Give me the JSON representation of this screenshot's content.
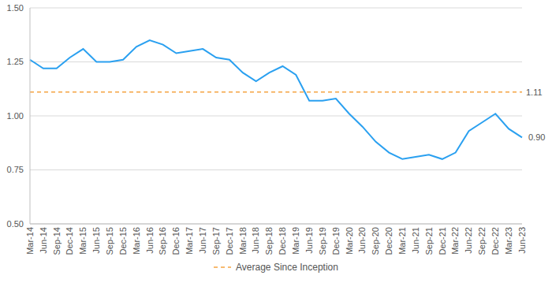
{
  "chart_data": {
    "type": "line",
    "grid": true,
    "legend": "bottom",
    "categories": [
      "Mar-14",
      "Jun-14",
      "Sep-14",
      "Dec-14",
      "Mar-15",
      "Jun-15",
      "Sep-15",
      "Dec-15",
      "Mar-16",
      "Jun-16",
      "Sep-16",
      "Dec-16",
      "Mar-17",
      "Jun-17",
      "Sep-17",
      "Dec-17",
      "Mar-18",
      "Jun-18",
      "Sep-18",
      "Dec-18",
      "Mar-19",
      "Jun-19",
      "Sep-19",
      "Dec-19",
      "Mar-20",
      "Jun-20",
      "Sep-20",
      "Dec-20",
      "Mar-21",
      "Jun-21",
      "Sep-21",
      "Dec-21",
      "Mar-22",
      "Jun-22",
      "Sep-22",
      "Dec-22",
      "Mar-23",
      "Jun-23"
    ],
    "series": [
      {
        "color": "#2aa0f0",
        "line_style": "solid",
        "values": [
          1.26,
          1.22,
          1.22,
          1.27,
          1.31,
          1.25,
          1.25,
          1.26,
          1.32,
          1.35,
          1.33,
          1.29,
          1.3,
          1.31,
          1.27,
          1.26,
          1.2,
          1.16,
          1.2,
          1.23,
          1.19,
          1.07,
          1.07,
          1.08,
          1.01,
          0.95,
          0.88,
          0.83,
          0.8,
          0.81,
          0.82,
          0.8,
          0.83,
          0.93,
          0.97,
          1.01,
          0.94,
          0.9
        ],
        "value_labels": [
          null,
          null,
          null,
          null,
          null,
          null,
          null,
          null,
          null,
          null,
          null,
          null,
          null,
          null,
          null,
          null,
          null,
          null,
          null,
          null,
          null,
          null,
          null,
          null,
          null,
          null,
          null,
          null,
          null,
          null,
          null,
          null,
          null,
          null,
          null,
          null,
          null,
          "0.90"
        ]
      }
    ],
    "average": {
      "name": "Average Since Inception",
      "value": 1.11,
      "label": "1.11",
      "color": "#f5a442",
      "line_style": "dashed"
    },
    "ylim": [
      0.5,
      1.5
    ],
    "yticks": [
      {
        "value": 0.5,
        "label": "0.50"
      },
      0.75,
      {
        "value": 1.0,
        "label": "1.00"
      },
      1.25,
      {
        "value": 1.5,
        "label": "1.50"
      }
    ]
  }
}
